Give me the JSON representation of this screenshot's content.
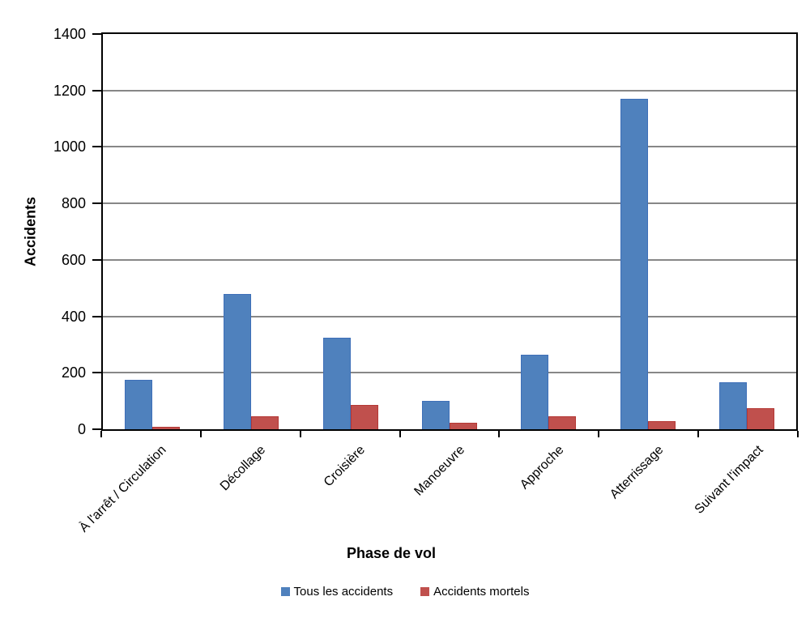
{
  "chart_data": {
    "type": "bar",
    "title": "",
    "xlabel": "Phase de vol",
    "ylabel": "Accidents",
    "categories": [
      "À l'arrêt / Circulation",
      "Décollage",
      "Croisière",
      "Manoeuvre",
      "Approche",
      "Atterrissage",
      "Suivant l'impact"
    ],
    "series": [
      {
        "name": "Tous les accidents",
        "color": "#4F81BD",
        "border_color": "#3E6FB8",
        "values": [
          175,
          480,
          325,
          100,
          265,
          1170,
          167
        ]
      },
      {
        "name": "Accidents mortels",
        "color": "#C0504D",
        "border_color": "#B43835",
        "values": [
          8,
          45,
          85,
          22,
          45,
          30,
          75
        ]
      }
    ],
    "ylim": [
      0,
      1400
    ],
    "ytick_step": 200,
    "yticks": [
      0,
      200,
      400,
      600,
      800,
      1000,
      1200,
      1400
    ],
    "grid": true,
    "gridline_color": "#878787",
    "axis_color": "#000000",
    "legend_position": "bottom"
  }
}
